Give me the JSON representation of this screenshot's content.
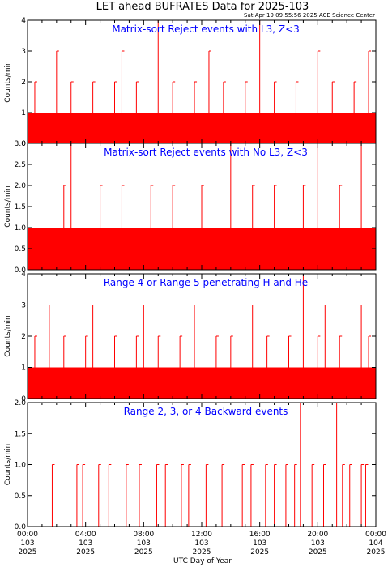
{
  "header": {
    "title": "LET ahead BUFRATES Data for 2025-103",
    "stamp": "Sat Apr 19 09:55:56 2025 ACE Science Center"
  },
  "x_axis": {
    "label": "UTC Day of Year",
    "ticks": [
      {
        "time": "00:00",
        "doy": "103",
        "year": "2025"
      },
      {
        "time": "04:00",
        "doy": "103",
        "year": "2025"
      },
      {
        "time": "08:00",
        "doy": "103",
        "year": "2025"
      },
      {
        "time": "12:00",
        "doy": "103",
        "year": "2025"
      },
      {
        "time": "16:00",
        "doy": "103",
        "year": "2025"
      },
      {
        "time": "20:00",
        "doy": "103",
        "year": "2025"
      },
      {
        "time": "00:00",
        "doy": "104",
        "year": "2025"
      }
    ]
  },
  "colors": {
    "trace": "#ff0000",
    "panel_title": "#0000ff",
    "axes": "#000000"
  },
  "chart_data": [
    {
      "type": "line",
      "title": "Matrix-sort Reject events with L3, Z<3",
      "ylabel": "Counts/min",
      "ylim": [
        0,
        4
      ],
      "yticks": [
        "0",
        "1",
        "2",
        "3",
        "4"
      ],
      "xlim_hours": [
        0,
        24
      ],
      "series": [
        {
          "x_hours": [
            0.0,
            0.5,
            1.0,
            1.5,
            2.0,
            2.5,
            3.0,
            3.5,
            4.0,
            4.5,
            5.0,
            5.5,
            6.0,
            6.5,
            7.0,
            7.5,
            8.0,
            8.5,
            9.0,
            9.5,
            10.0,
            10.5,
            11.0,
            11.5,
            12.0,
            12.5,
            13.0,
            13.5,
            14.0,
            14.5,
            15.0,
            15.5,
            16.0,
            16.5,
            17.0,
            17.5,
            18.0,
            18.5,
            19.0,
            19.5,
            20.0,
            20.5,
            21.0,
            21.5,
            22.0,
            22.5,
            23.0,
            23.5
          ],
          "values": [
            1,
            2,
            1,
            1,
            3,
            1,
            2,
            1,
            1,
            2,
            1,
            1,
            2,
            3,
            1,
            2,
            1,
            1,
            4,
            1,
            2,
            1,
            1,
            2,
            1,
            3,
            1,
            2,
            1,
            1,
            2,
            1,
            4,
            1,
            2,
            1,
            1,
            2,
            1,
            1,
            3,
            1,
            2,
            1,
            1,
            2,
            1,
            3
          ]
        }
      ]
    },
    {
      "type": "line",
      "title": "Matrix-sort Reject events with No L3, Z<3",
      "ylabel": "Counts/min",
      "ylim": [
        0,
        3
      ],
      "yticks": [
        "0.0",
        "0.5",
        "1.0",
        "1.5",
        "2.0",
        "2.5",
        "3.0"
      ],
      "xlim_hours": [
        0,
        24
      ],
      "series": [
        {
          "x_hours": [
            0.0,
            0.5,
            1.0,
            1.5,
            2.0,
            2.5,
            3.0,
            3.5,
            4.0,
            4.5,
            5.0,
            5.5,
            6.0,
            6.5,
            7.0,
            7.5,
            8.0,
            8.5,
            9.0,
            9.5,
            10.0,
            10.5,
            11.0,
            11.5,
            12.0,
            12.5,
            13.0,
            13.5,
            14.0,
            14.5,
            15.0,
            15.5,
            16.0,
            16.5,
            17.0,
            17.5,
            18.0,
            18.5,
            19.0,
            19.5,
            20.0,
            20.5,
            21.0,
            21.5,
            22.0,
            22.5,
            23.0,
            23.5
          ],
          "values": [
            2,
            1,
            0,
            1,
            1,
            2,
            3,
            1,
            1,
            0,
            2,
            1,
            1,
            2,
            1,
            1,
            0,
            2,
            1,
            1,
            2,
            1,
            1,
            1,
            2,
            0,
            1,
            1,
            3,
            1,
            1,
            2,
            1,
            1,
            2,
            1,
            1,
            0,
            2,
            1,
            3,
            1,
            1,
            2,
            1,
            1,
            3,
            1
          ]
        }
      ]
    },
    {
      "type": "line",
      "title": "Range 4 or Range 5 penetrating H and He",
      "ylabel": "Counts/min",
      "ylim": [
        0,
        4
      ],
      "yticks": [
        "0",
        "1",
        "2",
        "3",
        "4"
      ],
      "xlim_hours": [
        0,
        24
      ],
      "series": [
        {
          "x_hours": [
            0.0,
            0.5,
            1.0,
            1.5,
            2.0,
            2.5,
            3.0,
            3.5,
            4.0,
            4.5,
            5.0,
            5.5,
            6.0,
            6.5,
            7.0,
            7.5,
            8.0,
            8.5,
            9.0,
            9.5,
            10.0,
            10.5,
            11.0,
            11.5,
            12.0,
            12.5,
            13.0,
            13.5,
            14.0,
            14.5,
            15.0,
            15.5,
            16.0,
            16.5,
            17.0,
            17.5,
            18.0,
            18.5,
            19.0,
            19.5,
            20.0,
            20.5,
            21.0,
            21.5,
            22.0,
            22.5,
            23.0,
            23.5
          ],
          "values": [
            3,
            2,
            1,
            3,
            1,
            2,
            1,
            1,
            2,
            3,
            1,
            1,
            2,
            1,
            1,
            2,
            3,
            1,
            2,
            1,
            1,
            2,
            1,
            3,
            1,
            1,
            2,
            1,
            2,
            1,
            1,
            3,
            1,
            2,
            1,
            1,
            2,
            1,
            4,
            1,
            2,
            3,
            1,
            2,
            1,
            1,
            3,
            2
          ]
        }
      ]
    },
    {
      "type": "line",
      "title": "Range 2, 3, or 4 Backward events",
      "ylabel": "Counts/min",
      "ylim": [
        0,
        2
      ],
      "yticks": [
        "0.0",
        "0.5",
        "1.0",
        "1.5",
        "2.0"
      ],
      "xlim_hours": [
        0,
        24
      ],
      "series": [
        {
          "x_hours": [
            1.7,
            3.4,
            3.8,
            4.9,
            5.6,
            6.8,
            7.7,
            8.9,
            9.5,
            10.6,
            11.1,
            12.3,
            13.4,
            14.8,
            15.4,
            16.4,
            17.0,
            17.8,
            18.4,
            18.8,
            19.6,
            20.4,
            21.3,
            21.7,
            22.2,
            23.0,
            23.3
          ],
          "values": [
            1,
            1,
            1,
            1,
            1,
            1,
            1,
            1,
            1,
            1,
            1,
            1,
            1,
            1,
            1,
            1,
            1,
            1,
            1,
            2,
            1,
            1,
            2,
            1,
            1,
            1,
            1
          ]
        }
      ]
    }
  ]
}
